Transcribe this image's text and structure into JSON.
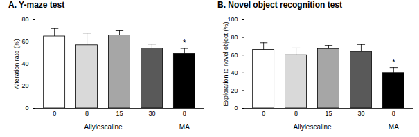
{
  "chart_data": [
    {
      "type": "bar",
      "title": "A. Y-maze test",
      "y_label": "Alteration rate (%)",
      "categories": [
        "0",
        "8",
        "15",
        "30",
        "8"
      ],
      "group_labels": [
        "Allylescaline",
        "Allylescaline",
        "Allylescaline",
        "Allylescaline",
        "MA"
      ],
      "values": [
        65,
        57,
        66,
        54,
        49
      ],
      "errors": [
        7,
        11,
        4,
        4,
        5
      ],
      "colors": [
        "#ffffff",
        "#d9d9d9",
        "#a6a6a6",
        "#595959",
        "#000000"
      ],
      "annotations": [
        {
          "text": "*",
          "x": 4
        }
      ],
      "ylim": [
        0,
        80
      ],
      "yticks": [
        0,
        20,
        40,
        60,
        80
      ],
      "grid": false
    },
    {
      "type": "bar",
      "title": "B. Novel object recognition test",
      "y_label": "Exploration to novel object (%)",
      "categories": [
        "0",
        "8",
        "15",
        "30",
        "8"
      ],
      "group_labels": [
        "Allylescaline",
        "Allylescaline",
        "Allylescaline",
        "Allylescaline",
        "MA"
      ],
      "values": [
        66,
        60,
        67,
        64,
        40
      ],
      "errors": [
        8,
        8,
        4,
        8,
        6
      ],
      "colors": [
        "#ffffff",
        "#d9d9d9",
        "#a6a6a6",
        "#595959",
        "#000000"
      ],
      "annotations": [
        {
          "text": "*",
          "x": 4
        }
      ],
      "ylim": [
        0,
        100
      ],
      "yticks": [
        0,
        20,
        40,
        60,
        80,
        100
      ],
      "grid": false
    }
  ]
}
